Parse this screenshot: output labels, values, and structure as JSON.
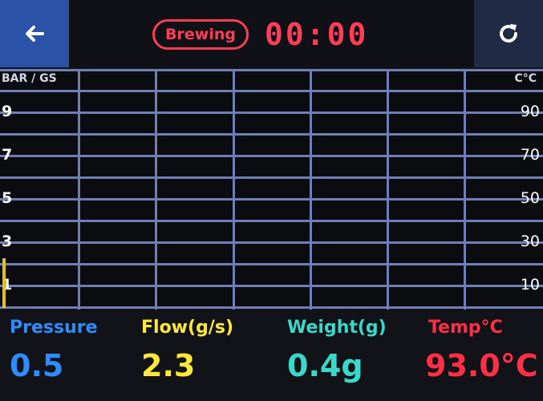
{
  "header": {
    "back_icon": "arrow-left-icon",
    "refresh_icon": "refresh-icon",
    "status": "Brewing",
    "timer": "00:00"
  },
  "chart": {
    "left_axis_label": "BAR / GS",
    "right_axis_label": "C°C",
    "left_ticks": [
      "9",
      "7",
      "5",
      "3",
      "1"
    ],
    "right_ticks": [
      "90",
      "70",
      "50",
      "30",
      "10"
    ]
  },
  "chart_data": {
    "type": "line",
    "title": "",
    "xlabel": "",
    "ylabel": "BAR / GS",
    "ylabel_right": "C°C",
    "ylim_left": [
      0,
      10
    ],
    "ylim_right": [
      0,
      100
    ],
    "series": [],
    "grid": true
  },
  "readouts": {
    "pressure_label": "Pressure",
    "pressure_value": "0.5",
    "flow_label": "Flow(g/s)",
    "flow_value": "2.3",
    "weight_label": "Weight(g)",
    "weight_value": "0.4g",
    "temp_label": "Temp°C",
    "temp_value": "93.0°C"
  },
  "colors": {
    "pressure": "#2f8cff",
    "flow": "#ffe83a",
    "weight": "#3ad8c9",
    "temp": "#ff2f45",
    "status": "#ff3d57",
    "back_button_bg": "#2a53a8"
  }
}
